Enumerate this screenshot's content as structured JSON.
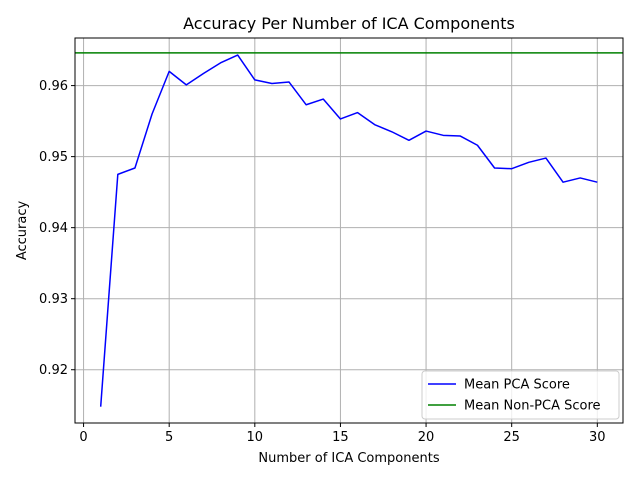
{
  "chart_data": {
    "type": "line",
    "title": "Accuracy Per Number of ICA Components",
    "xlabel": "Number of ICA Components",
    "ylabel": "Accuracy",
    "xlim": [
      -0.5,
      31.5
    ],
    "ylim": [
      0.9125,
      0.9667
    ],
    "xticks": [
      0,
      5,
      10,
      15,
      20,
      25,
      30
    ],
    "xtick_labels": [
      "0",
      "5",
      "10",
      "15",
      "20",
      "25",
      "30"
    ],
    "yticks": [
      0.92,
      0.93,
      0.94,
      0.95,
      0.96
    ],
    "ytick_labels": [
      "0.92",
      "0.93",
      "0.94",
      "0.95",
      "0.96"
    ],
    "grid": true,
    "legend_position": "bottom-right",
    "series": [
      {
        "name": "Mean PCA Score",
        "color": "#0000ff",
        "x": [
          1,
          2,
          3,
          4,
          5,
          6,
          7,
          8,
          9,
          10,
          11,
          12,
          13,
          14,
          15,
          16,
          17,
          18,
          19,
          20,
          21,
          22,
          23,
          24,
          25,
          26,
          27,
          28,
          29,
          30
        ],
        "y": [
          0.9148,
          0.9475,
          0.9484,
          0.956,
          0.962,
          0.9601,
          0.9617,
          0.9632,
          0.9643,
          0.9608,
          0.9603,
          0.9605,
          0.9573,
          0.9581,
          0.9553,
          0.9562,
          0.9545,
          0.9535,
          0.9523,
          0.9536,
          0.953,
          0.9529,
          0.9516,
          0.9484,
          0.9483,
          0.9492,
          0.9498,
          0.9464,
          0.947,
          0.9464
        ]
      },
      {
        "name": "Mean Non-PCA Score",
        "color": "#008000",
        "type": "hline",
        "y": 0.9646
      }
    ]
  }
}
